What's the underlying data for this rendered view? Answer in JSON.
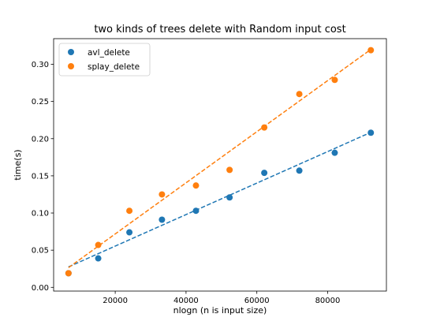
{
  "chart_data": {
    "type": "scatter",
    "title": "two kinds of trees delete with Random input cost",
    "xlabel": "nlogn (n is input size)",
    "ylabel": "time(s)",
    "xlim": [
      2600,
      96600
    ],
    "ylim": [
      -0.005,
      0.3345
    ],
    "xticks": [
      20000,
      40000,
      60000,
      80000
    ],
    "xtick_labels": [
      "20000",
      "40000",
      "60000",
      "80000"
    ],
    "yticks": [
      0.0,
      0.05,
      0.1,
      0.15,
      0.2,
      0.25,
      0.3
    ],
    "ytick_labels": [
      "0.00",
      "0.05",
      "0.10",
      "0.15",
      "0.20",
      "0.25",
      "0.30"
    ],
    "grid": false,
    "legend_position": "top-left",
    "series": [
      {
        "name": "avl_delete",
        "color": "#1f77b4",
        "marker": "circle",
        "x": [
          6800,
          15200,
          24000,
          33200,
          42800,
          52300,
          62100,
          72000,
          82000,
          92200
        ],
        "y": [
          0.019,
          0.039,
          0.074,
          0.091,
          0.103,
          0.121,
          0.154,
          0.157,
          0.181,
          0.208
        ],
        "trendline": {
          "style": "dashed",
          "x": [
            6800,
            92200
          ],
          "y": [
            0.0275,
            0.2085
          ]
        }
      },
      {
        "name": "splay_delete",
        "color": "#ff7f0e",
        "marker": "circle",
        "x": [
          6800,
          15200,
          24000,
          33200,
          42800,
          52300,
          62100,
          72000,
          82000,
          92200
        ],
        "y": [
          0.019,
          0.057,
          0.103,
          0.125,
          0.137,
          0.158,
          0.215,
          0.26,
          0.279,
          0.319
        ],
        "trendline": {
          "style": "dashed",
          "x": [
            6800,
            92200
          ],
          "y": [
            0.0265,
            0.32
          ]
        }
      }
    ]
  }
}
